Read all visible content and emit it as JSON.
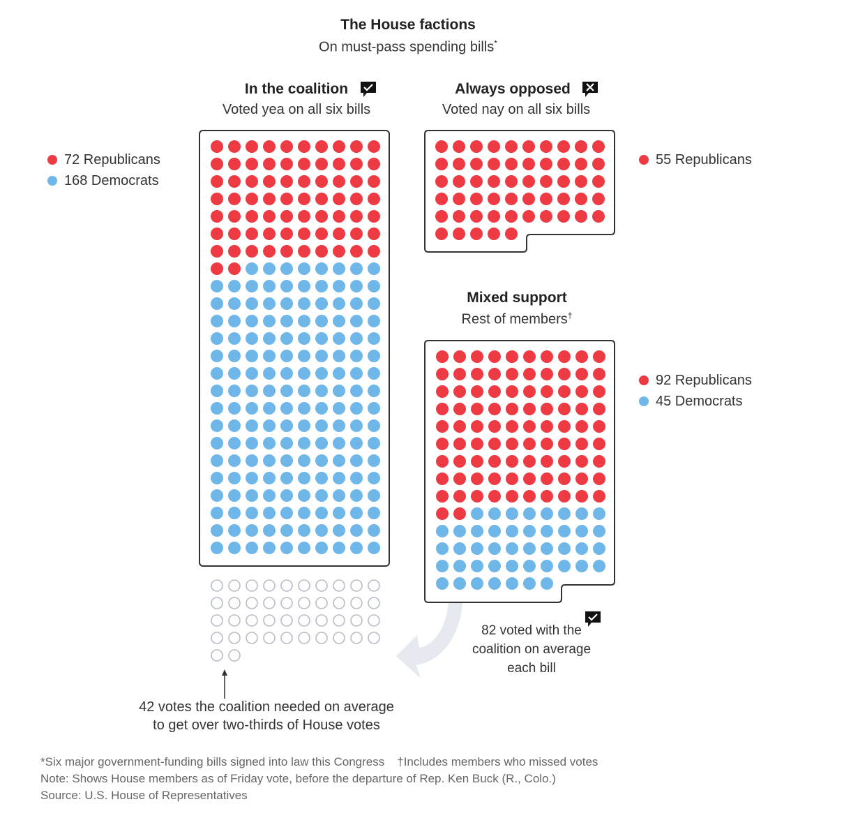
{
  "title": "The House factions",
  "subtitle": "On must-pass spending bills",
  "subtitle_mark": "*",
  "colors": {
    "republican": "#ee3a43",
    "democrat": "#6fb7e9",
    "needed": "#b8bcc8",
    "box": "#333333",
    "arrow": "#e4e8ee"
  },
  "chart_data": {
    "type": "unit-dot",
    "factions": [
      {
        "key": "coalition",
        "title": "In the coalition",
        "subtitle": "Voted yea on all six bills",
        "icon": "check-speech-icon",
        "republicans": 72,
        "democrats": 168,
        "legend": [
          "72 Republicans",
          "168 Democrats"
        ]
      },
      {
        "key": "opposed",
        "title": "Always opposed",
        "subtitle": "Voted nay on all six bills",
        "icon": "x-speech-icon",
        "republicans": 55,
        "democrats": 0,
        "legend": [
          "55 Republicans"
        ]
      },
      {
        "key": "mixed",
        "title": "Mixed support",
        "subtitle": "Rest of members",
        "subtitle_mark": "†",
        "republicans": 92,
        "democrats": 45,
        "legend": [
          "92 Republicans",
          "45 Democrats"
        ]
      }
    ],
    "needed_votes": 42,
    "mixed_with_coalition_avg": 82
  },
  "annotations": {
    "mixed_line1": "82 voted with the",
    "mixed_line2": "coalition on average",
    "mixed_line3": "each bill",
    "needed_line1": "42 votes the coalition needed on average",
    "needed_line2": "to get over two-thirds of House votes"
  },
  "notes": {
    "footnote1": "*Six major government-funding bills signed into law this Congress",
    "footnote2": "†Includes members who missed votes",
    "note": "Note: Shows House members as of Friday vote, before the departure of Rep. Ken Buck (R., Colo.)",
    "source": "Source: U.S. House of Representatives"
  }
}
